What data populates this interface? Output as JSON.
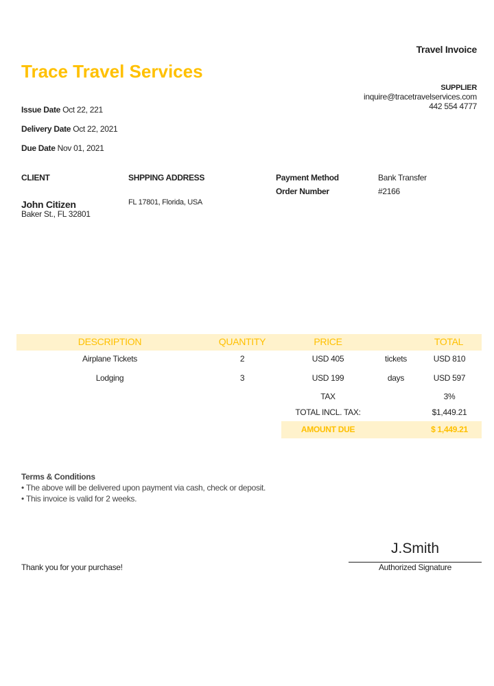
{
  "doc_title": "Travel Invoice",
  "company_name": "Trace Travel Services",
  "supplier": {
    "label": "SUPPLIER",
    "email": "inquire@tracetravelservices.com",
    "phone": "442 554 4777"
  },
  "dates": [
    {
      "label": "Issue Date",
      "value": "Oct 22, 221"
    },
    {
      "label": "Delivery Date",
      "value": "Oct 22, 2021"
    },
    {
      "label": "Due Date",
      "value": "Nov 01, 2021"
    }
  ],
  "client": {
    "label": "CLIENT",
    "name": "John Citizen",
    "address": "Baker St., FL 32801"
  },
  "shipping": {
    "label": "SHPPING ADDRESS",
    "value": "FL 17801, Florida, USA"
  },
  "payment": {
    "method_label": "Payment Method",
    "method_value": "Bank Transfer",
    "order_label": "Order Number",
    "order_value": "#2166"
  },
  "table": {
    "headers": {
      "description": "DESCRIPTION",
      "quantity": "QUANTITY",
      "price": "PRICE",
      "total": "TOTAL"
    },
    "rows": [
      {
        "description": "Airplane Tickets",
        "quantity": "2",
        "price": "USD 405",
        "unit": "tickets",
        "total": "USD 810"
      },
      {
        "description": "Lodging",
        "quantity": "3",
        "price": "USD 199",
        "unit": "days",
        "total": "USD 597"
      }
    ],
    "tax_label": "TAX",
    "tax_value": "3%",
    "total_label": "TOTAL INCL. TAX:",
    "total_value": "$1,449.21",
    "due_label": "AMOUNT DUE",
    "due_value": "$ 1,449.21"
  },
  "terms": {
    "title": "Terms & Conditions",
    "items": [
      "The above will be delivered upon payment via cash, check or deposit.",
      "This invoice is valid for 2 weeks."
    ]
  },
  "thanks": "Thank you for your purchase!",
  "signature": {
    "name": "J.Smith",
    "label": "Authorized Signature"
  },
  "colors": {
    "accent": "#FFC000",
    "band": "#FFF2CC"
  }
}
